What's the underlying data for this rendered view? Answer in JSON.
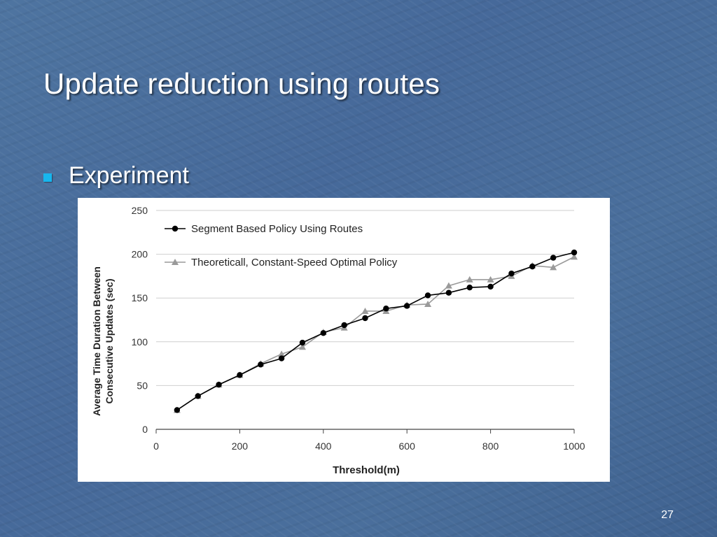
{
  "slide": {
    "title": "Update reduction using routes",
    "bullet": "Experiment",
    "page_number": "27"
  },
  "chart_data": {
    "type": "line",
    "title": "",
    "xlabel": "Threshold(m)",
    "ylabel_lines": [
      "Average Time Duration Between",
      "Consecutive Updates (sec)"
    ],
    "xlim": [
      0,
      1000
    ],
    "ylim": [
      0,
      250
    ],
    "xticks": [
      0,
      200,
      400,
      600,
      800,
      1000
    ],
    "yticks": [
      0,
      50,
      100,
      150,
      200,
      250
    ],
    "grid": true,
    "legend_position": "top-left",
    "series": [
      {
        "name": "Segment Based Policy Using Routes",
        "marker": "circle",
        "color": "#000000",
        "x": [
          50,
          100,
          150,
          200,
          250,
          300,
          350,
          400,
          450,
          500,
          550,
          600,
          650,
          700,
          750,
          800,
          850,
          900,
          950,
          1000
        ],
        "y": [
          22,
          38,
          51,
          62,
          74,
          81,
          99,
          110,
          119,
          127,
          138,
          141,
          153,
          156,
          162,
          163,
          178,
          186,
          196,
          202
        ]
      },
      {
        "name": "Theoreticall, Constant-Speed Optimal Policy",
        "marker": "triangle",
        "color": "#9a9a9a",
        "x": [
          50,
          100,
          150,
          200,
          250,
          300,
          350,
          400,
          450,
          500,
          550,
          600,
          650,
          700,
          750,
          800,
          850,
          900,
          950,
          1000
        ],
        "y": [
          22,
          38,
          51,
          62,
          75,
          86,
          94,
          111,
          116,
          135,
          135,
          142,
          143,
          164,
          171,
          171,
          175,
          187,
          185,
          197
        ]
      }
    ]
  }
}
